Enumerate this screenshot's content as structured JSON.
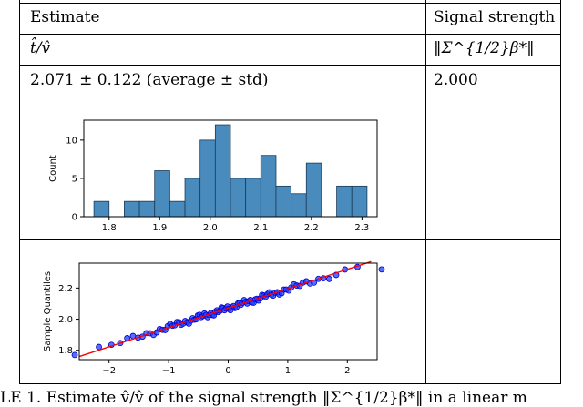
{
  "table": {
    "header": {
      "col1": "Estimate",
      "col2": "Signal strength"
    },
    "row_symbols": {
      "col1": "t̂/v̂",
      "col2": "‖Σ^{1/2}β*‖"
    },
    "row_values": {
      "col1": "2.071 ± 0.122 (average ± std)",
      "col2": "2.000"
    }
  },
  "caption": "LE 1.      Estimate v̂/v̂ of the signal strength ‖Σ^{1/2}β*‖ in a linear m",
  "chart_data": [
    {
      "type": "bar",
      "ylabel": "Count",
      "xlabel": "",
      "bin_edges": [
        1.77,
        1.8,
        1.83,
        1.86,
        1.89,
        1.92,
        1.95,
        1.98,
        2.01,
        2.04,
        2.07,
        2.1,
        2.13,
        2.16,
        2.19,
        2.22,
        2.25,
        2.28,
        2.31
      ],
      "values": [
        2,
        0,
        2,
        2,
        6,
        2,
        5,
        10,
        12,
        5,
        5,
        8,
        4,
        3,
        7,
        0,
        4,
        4
      ],
      "xticks": [
        "1.8",
        "1.9",
        "2.0",
        "2.1",
        "2.2",
        "2.3"
      ],
      "yticks": [
        "0",
        "5",
        "10"
      ],
      "xlim": [
        1.75,
        2.33
      ],
      "ylim": [
        0,
        12.6
      ],
      "bar_color": "#4a8bbd",
      "edge_color": "#1b3a57"
    },
    {
      "type": "scatter",
      "ylabel": "Sample Quantiles",
      "xlabel": "",
      "xticks": [
        "−2",
        "−1",
        "0",
        "1",
        "2"
      ],
      "yticks": [
        "1.8",
        "2.0",
        "2.2"
      ],
      "xlim": [
        -2.5,
        2.5
      ],
      "ylim": [
        1.74,
        2.36
      ],
      "reference_line": {
        "x": [
          -2.5,
          2.4
        ],
        "y": [
          1.76,
          2.37
        ],
        "color": "#ff0000"
      },
      "point_color": "#1f3dff"
    }
  ]
}
